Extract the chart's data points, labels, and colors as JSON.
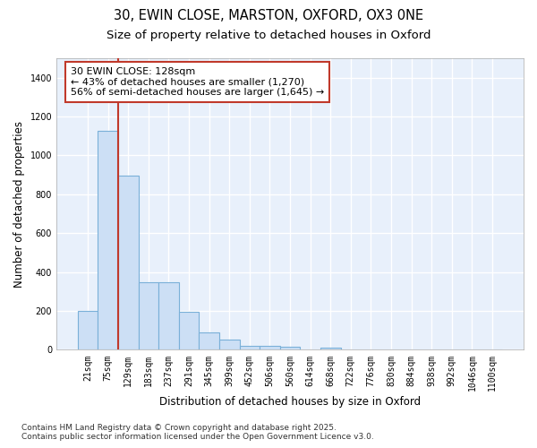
{
  "title_line1": "30, EWIN CLOSE, MARSTON, OXFORD, OX3 0NE",
  "title_line2": "Size of property relative to detached houses in Oxford",
  "xlabel": "Distribution of detached houses by size in Oxford",
  "ylabel": "Number of detached properties",
  "bar_color": "#ccdff5",
  "bar_edge_color": "#7ab0d8",
  "categories": [
    "21sqm",
    "75sqm",
    "129sqm",
    "183sqm",
    "237sqm",
    "291sqm",
    "345sqm",
    "399sqm",
    "452sqm",
    "506sqm",
    "560sqm",
    "614sqm",
    "668sqm",
    "722sqm",
    "776sqm",
    "830sqm",
    "884sqm",
    "938sqm",
    "992sqm",
    "1046sqm",
    "1100sqm"
  ],
  "values": [
    200,
    1125,
    895,
    350,
    350,
    195,
    90,
    55,
    22,
    20,
    14,
    0,
    12,
    0,
    0,
    0,
    0,
    0,
    0,
    0,
    0
  ],
  "ylim": [
    0,
    1500
  ],
  "yticks": [
    0,
    200,
    400,
    600,
    800,
    1000,
    1200,
    1400
  ],
  "vline_index": 2,
  "vline_color": "#c0392b",
  "annotation_text": "30 EWIN CLOSE: 128sqm\n← 43% of detached houses are smaller (1,270)\n56% of semi-detached houses are larger (1,645) →",
  "box_facecolor": "#ffffff",
  "box_edgecolor": "#c0392b",
  "figure_facecolor": "#ffffff",
  "plot_facecolor": "#e8f0fb",
  "grid_color": "#ffffff",
  "footer": "Contains HM Land Registry data © Crown copyright and database right 2025.\nContains public sector information licensed under the Open Government Licence v3.0.",
  "title_fontsize": 10.5,
  "subtitle_fontsize": 9.5,
  "tick_fontsize": 7,
  "label_fontsize": 8.5,
  "annotation_fontsize": 8,
  "footer_fontsize": 6.5
}
